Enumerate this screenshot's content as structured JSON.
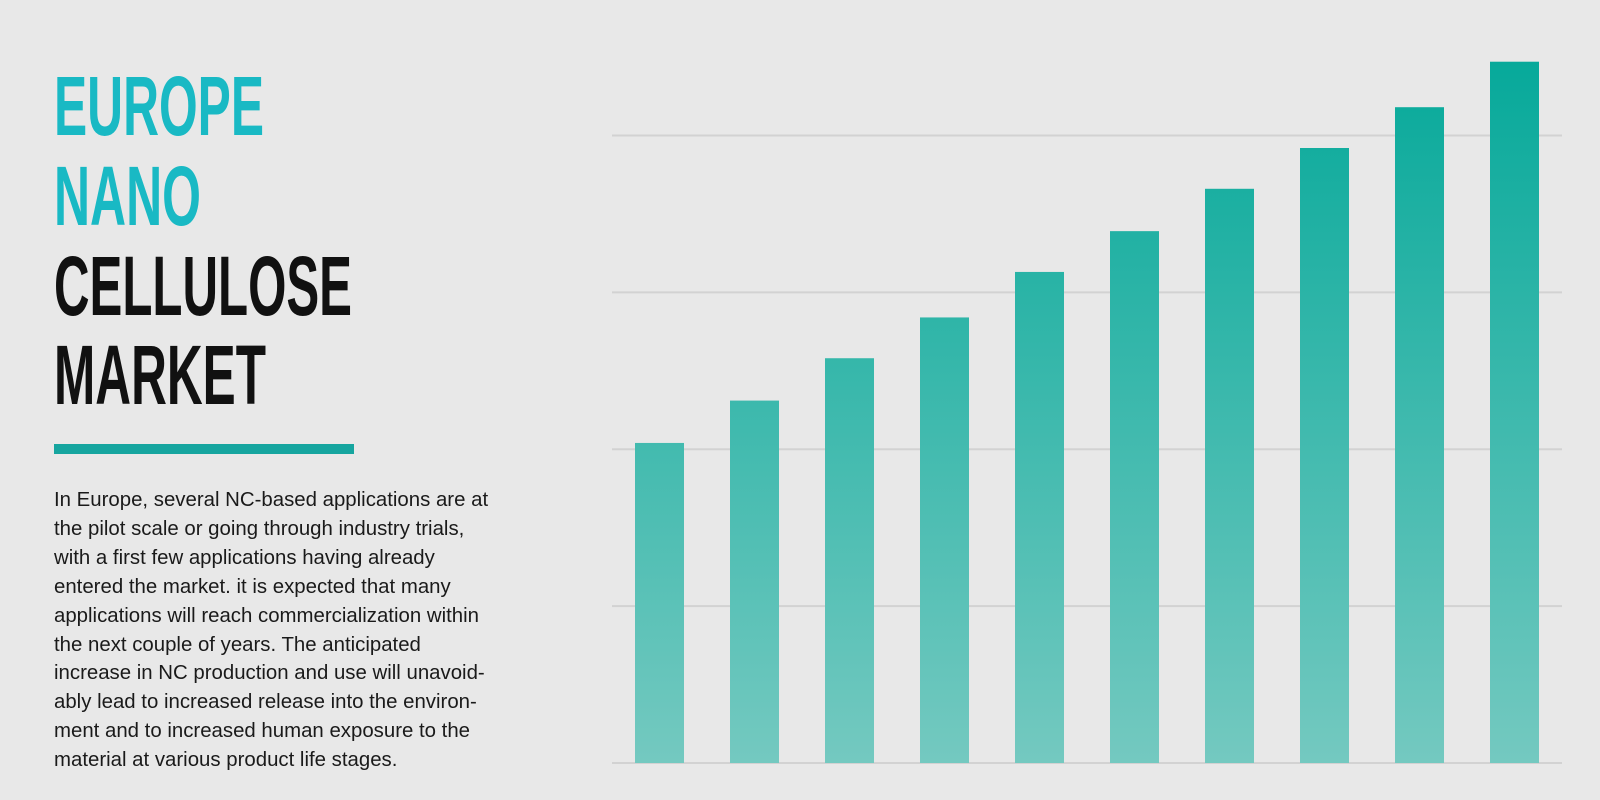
{
  "title_lines": [
    "EUROPE",
    "NANO",
    "CELLULOSE",
    "MARKET"
  ],
  "description_lines": [
    "In Europe, several NC-based applications are at",
    "the pilot scale or going through industry trials,",
    "with a first few applications having already",
    "entered the market. it is expected that many",
    "applications will reach commercialization within",
    "the next couple of years. The anticipated",
    "increase in NC production and use will unavoid-",
    "ably lead to increased release into the environ-",
    "ment and to increased human exposure to the",
    "material at various product life stages."
  ],
  "chart_data": {
    "type": "bar",
    "categories": [
      null,
      null,
      null,
      null,
      null,
      null,
      null,
      null,
      null,
      null
    ],
    "values": [
      2.04,
      2.31,
      2.58,
      2.84,
      3.13,
      3.39,
      3.66,
      3.92,
      4.18,
      4.47
    ],
    "ylim": [
      0,
      4.5
    ],
    "grid_lines": [
      0,
      1,
      2,
      3,
      4
    ],
    "grid": true,
    "color_top": "#06a99a",
    "color_bottom": "#74c9c0"
  }
}
